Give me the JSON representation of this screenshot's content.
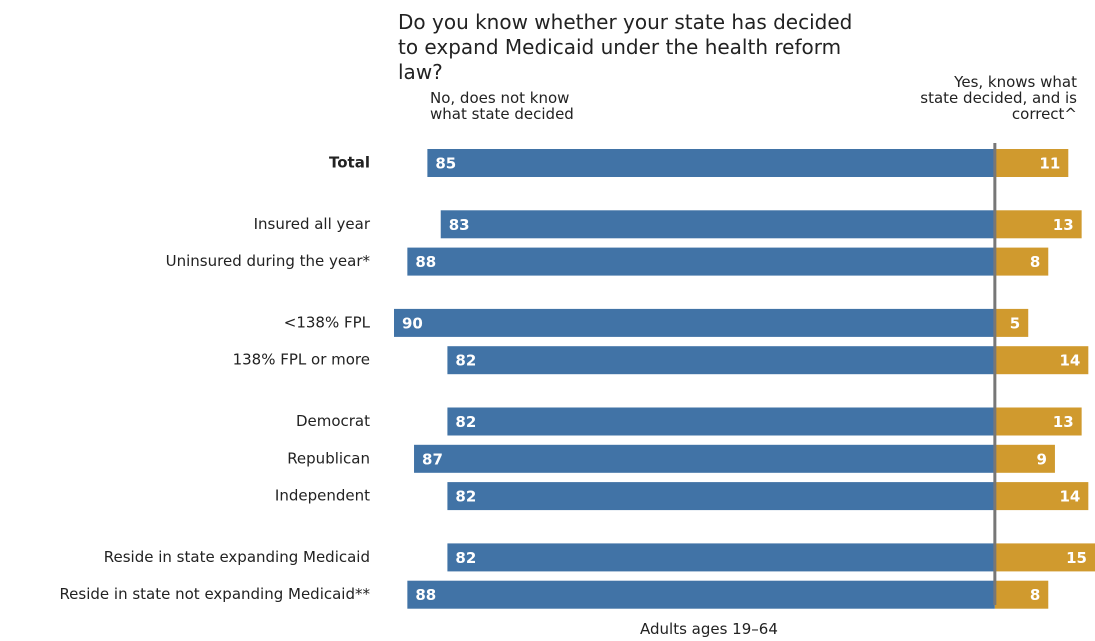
{
  "chart_data": {
    "type": "diverging_bar",
    "title": "Do you know whether your state has decided to expand Medicaid under the health reform law?",
    "note": "Adults ages 19–64",
    "categories": [
      "Total",
      null,
      "Insured all year",
      "Uninsured during the year*",
      null,
      "<138% FPL",
      "138% FPL or more",
      null,
      "Democrat",
      "Republican",
      "Independent",
      null,
      "Reside in state expanding Medicaid",
      "Reside in state not expanding Medicaid**"
    ],
    "bold_categories": [
      "Total"
    ],
    "xlim": [
      -90,
      15
    ],
    "series": [
      {
        "name": "No, does not know what state decided",
        "color": "#4173a6",
        "side": "left",
        "values": [
          85,
          null,
          83,
          88,
          null,
          90,
          82,
          null,
          82,
          87,
          82,
          null,
          82,
          88
        ]
      },
      {
        "name": "Yes, knows what state decided, and is correct^",
        "color": "#d09a2e",
        "side": "right",
        "values": [
          11,
          null,
          13,
          8,
          null,
          5,
          14,
          null,
          13,
          9,
          14,
          null,
          15,
          8
        ]
      }
    ]
  }
}
